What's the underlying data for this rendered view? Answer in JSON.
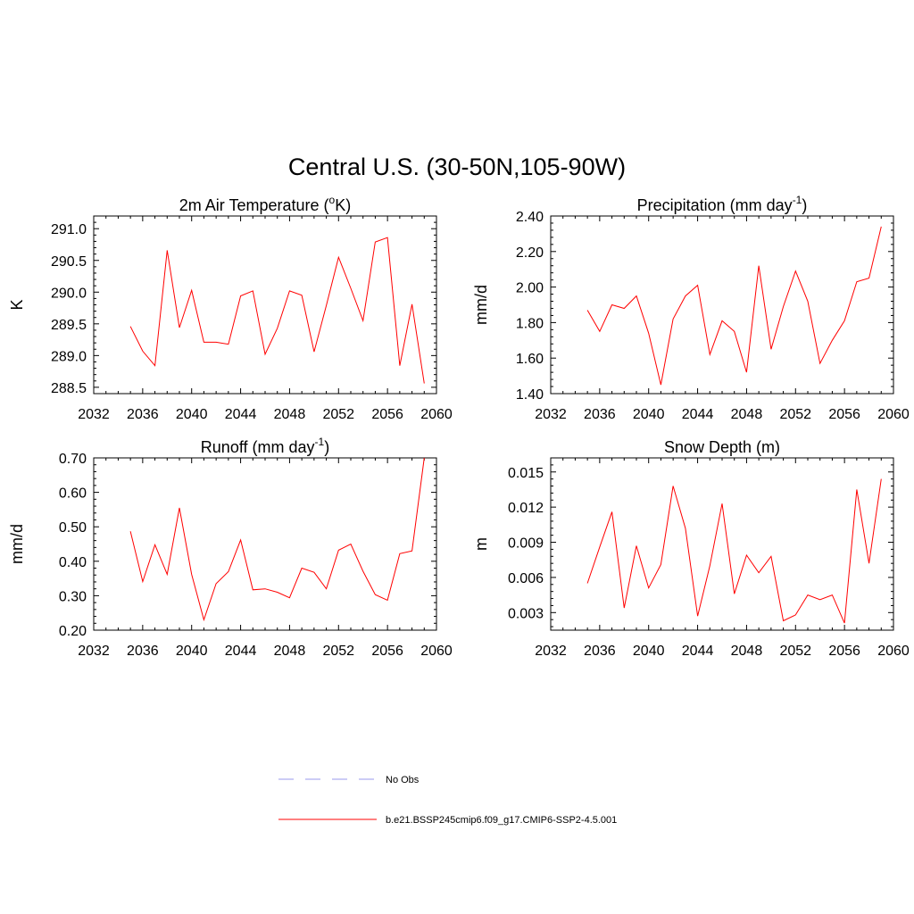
{
  "figure": {
    "title": "Central U.S. (30-50N,105-90W)"
  },
  "legend": {
    "entries": [
      {
        "label": "No Obs",
        "color": "#9999ee",
        "dash": true
      },
      {
        "label": "b.e21.BSSP245cmip6.f09_g17.CMIP6-SSP2-4.5.001",
        "color": "#ff0000",
        "dash": false
      }
    ]
  },
  "chart_data": [
    {
      "type": "line",
      "title": "2m Air Temperature (",
      "title_sup": "o",
      "title_suffix": "K)",
      "ylabel": "K",
      "xlim": [
        2032,
        2060
      ],
      "ylim": [
        288.4,
        291.2
      ],
      "x_ticks": [
        2032,
        2036,
        2040,
        2044,
        2048,
        2052,
        2056,
        2060
      ],
      "x_tick_labels": [
        "2032",
        "2036",
        "2040",
        "2044",
        "2048",
        "2052",
        "2056",
        "2060"
      ],
      "y_ticks": [
        288.5,
        289.0,
        289.5,
        290.0,
        290.5,
        291.0
      ],
      "y_tick_labels": [
        "288.5",
        "289.0",
        "289.5",
        "290.0",
        "290.5",
        "291.0"
      ],
      "color": "#ff0000",
      "x": [
        2035,
        2036,
        2037,
        2038,
        2039,
        2040,
        2041,
        2042,
        2043,
        2044,
        2045,
        2046,
        2047,
        2048,
        2049,
        2050,
        2051,
        2052,
        2053,
        2054,
        2055,
        2056,
        2057,
        2058,
        2059
      ],
      "y": [
        289.46,
        289.07,
        288.84,
        290.66,
        289.44,
        290.03,
        289.21,
        289.21,
        289.18,
        289.94,
        290.02,
        289.02,
        289.43,
        290.02,
        289.95,
        289.06,
        289.79,
        290.55,
        290.06,
        289.55,
        290.79,
        290.86,
        288.84,
        289.81,
        288.56
      ]
    },
    {
      "type": "line",
      "title": "Precipitation (mm day",
      "title_sup": "-1",
      "title_suffix": ")",
      "ylabel": "mm/d",
      "xlim": [
        2032,
        2060
      ],
      "ylim": [
        1.4,
        2.4
      ],
      "x_ticks": [
        2032,
        2036,
        2040,
        2044,
        2048,
        2052,
        2056,
        2060
      ],
      "x_tick_labels": [
        "2032",
        "2036",
        "2040",
        "2044",
        "2048",
        "2052",
        "2056",
        "2060"
      ],
      "y_ticks": [
        1.4,
        1.6,
        1.8,
        2.0,
        2.2,
        2.4
      ],
      "y_tick_labels": [
        "1.40",
        "1.60",
        "1.80",
        "2.00",
        "2.20",
        "2.40"
      ],
      "color": "#ff0000",
      "x": [
        2035,
        2036,
        2037,
        2038,
        2039,
        2040,
        2041,
        2042,
        2043,
        2044,
        2045,
        2046,
        2047,
        2048,
        2049,
        2050,
        2051,
        2052,
        2053,
        2054,
        2055,
        2056,
        2057,
        2058,
        2059
      ],
      "y": [
        1.87,
        1.75,
        1.9,
        1.88,
        1.95,
        1.74,
        1.45,
        1.82,
        1.95,
        2.01,
        1.62,
        1.81,
        1.75,
        1.52,
        2.12,
        1.65,
        1.89,
        2.09,
        1.92,
        1.57,
        1.7,
        1.81,
        2.03,
        2.05,
        2.34
      ]
    },
    {
      "type": "line",
      "title": "Runoff (mm day",
      "title_sup": "-1",
      "title_suffix": ")",
      "ylabel": "mm/d",
      "xlim": [
        2032,
        2060
      ],
      "ylim": [
        0.2,
        0.7
      ],
      "x_ticks": [
        2032,
        2036,
        2040,
        2044,
        2048,
        2052,
        2056,
        2060
      ],
      "x_tick_labels": [
        "2032",
        "2036",
        "2040",
        "2044",
        "2048",
        "2052",
        "2056",
        "2060"
      ],
      "y_ticks": [
        0.2,
        0.3,
        0.4,
        0.5,
        0.6,
        0.7
      ],
      "y_tick_labels": [
        "0.20",
        "0.30",
        "0.40",
        "0.50",
        "0.60",
        "0.70"
      ],
      "color": "#ff0000",
      "x": [
        2035,
        2036,
        2037,
        2038,
        2039,
        2040,
        2041,
        2042,
        2043,
        2044,
        2045,
        2046,
        2047,
        2048,
        2049,
        2050,
        2051,
        2052,
        2053,
        2054,
        2055,
        2056,
        2057,
        2058,
        2059
      ],
      "y": [
        0.487,
        0.341,
        0.448,
        0.362,
        0.555,
        0.362,
        0.23,
        0.335,
        0.37,
        0.462,
        0.317,
        0.32,
        0.31,
        0.294,
        0.38,
        0.368,
        0.32,
        0.432,
        0.45,
        0.371,
        0.303,
        0.287,
        0.422,
        0.43,
        0.7
      ]
    },
    {
      "type": "line",
      "title": "Snow Depth (m)",
      "title_sup": "",
      "title_suffix": "",
      "ylabel": "m",
      "xlim": [
        2032,
        2060
      ],
      "ylim": [
        0.0015,
        0.0162
      ],
      "x_ticks": [
        2032,
        2036,
        2040,
        2044,
        2048,
        2052,
        2056,
        2060
      ],
      "x_tick_labels": [
        "2032",
        "2036",
        "2040",
        "2044",
        "2048",
        "2052",
        "2056",
        "2060"
      ],
      "y_ticks": [
        0.003,
        0.006,
        0.009,
        0.012,
        0.015
      ],
      "y_tick_labels": [
        "0.003",
        "0.006",
        "0.009",
        "0.012",
        "0.015"
      ],
      "color": "#ff0000",
      "x": [
        2035,
        2036,
        2037,
        2038,
        2039,
        2040,
        2041,
        2042,
        2043,
        2044,
        2045,
        2046,
        2047,
        2048,
        2049,
        2050,
        2051,
        2052,
        2053,
        2054,
        2055,
        2056,
        2057,
        2058,
        2059
      ],
      "y": [
        0.0055,
        0.0086,
        0.0116,
        0.0034,
        0.0087,
        0.0051,
        0.0071,
        0.0138,
        0.0102,
        0.0027,
        0.007,
        0.0123,
        0.0046,
        0.0079,
        0.0064,
        0.0078,
        0.0023,
        0.0028,
        0.0045,
        0.0041,
        0.0045,
        0.0021,
        0.0135,
        0.0072,
        0.0144
      ]
    }
  ]
}
